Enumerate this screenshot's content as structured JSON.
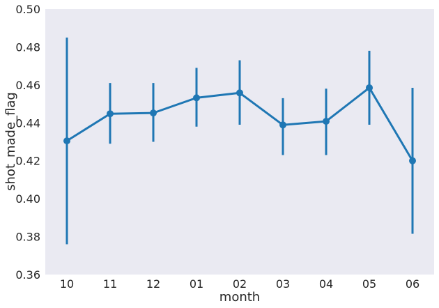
{
  "chart_data": {
    "type": "line",
    "xlabel": "month",
    "ylabel": "shot_made_flag",
    "categories": [
      "10",
      "11",
      "12",
      "01",
      "02",
      "03",
      "04",
      "05",
      "06"
    ],
    "values": [
      0.4305,
      0.4448,
      0.4452,
      0.4532,
      0.4558,
      0.4389,
      0.4408,
      0.4585,
      0.42
    ],
    "error_low": [
      0.376,
      0.429,
      0.43,
      0.438,
      0.439,
      0.423,
      0.423,
      0.439,
      0.3815
    ],
    "error_high": [
      0.485,
      0.461,
      0.461,
      0.469,
      0.473,
      0.453,
      0.458,
      0.478,
      0.4585
    ],
    "ylim": [
      0.36,
      0.5
    ],
    "yticks": [
      "0.36",
      "0.38",
      "0.40",
      "0.42",
      "0.44",
      "0.46",
      "0.48",
      "0.50"
    ],
    "grid": false,
    "colors": {
      "series": "#1f77b4",
      "plot_background": "#eaeaf2"
    }
  }
}
